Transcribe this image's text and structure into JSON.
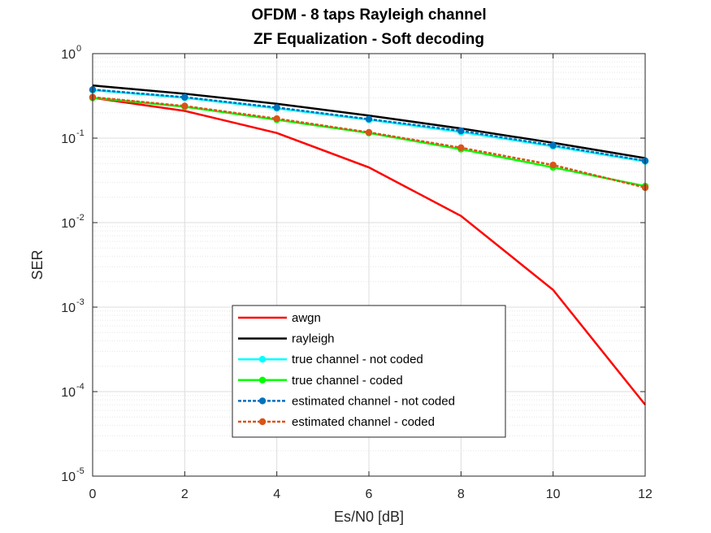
{
  "chart_data": {
    "type": "line",
    "title": [
      "OFDM - 8 taps Rayleigh channel",
      "ZF Equalization - Soft decoding"
    ],
    "xlabel": "Es/N0 [dB]",
    "ylabel": "SER",
    "xlim": [
      0,
      12
    ],
    "ylim": [
      1e-05,
      1
    ],
    "yscale": "log",
    "grid": true,
    "minor_grid": true,
    "legend_placement": "lower-center",
    "x": [
      0,
      2,
      4,
      6,
      8,
      10,
      12
    ],
    "xticks": [
      "0",
      "2",
      "4",
      "6",
      "8",
      "10",
      "12"
    ],
    "yticks": [
      {
        "base": "10",
        "exp": "0"
      },
      {
        "base": "10",
        "exp": "-1"
      },
      {
        "base": "10",
        "exp": "-2"
      },
      {
        "base": "10",
        "exp": "-3"
      },
      {
        "base": "10",
        "exp": "-4"
      },
      {
        "base": "10",
        "exp": "-5"
      }
    ],
    "series": [
      {
        "name": "awgn",
        "color": "#ff0000",
        "dashed": false,
        "marker": false,
        "values": [
          0.3,
          0.21,
          0.115,
          0.045,
          0.012,
          0.0016,
          7e-05
        ]
      },
      {
        "name": "rayleigh",
        "color": "#000000",
        "dashed": false,
        "marker": false,
        "values": [
          0.42,
          0.335,
          0.255,
          0.185,
          0.13,
          0.088,
          0.058
        ]
      },
      {
        "name": "true channel - not coded",
        "color": "#00ffff",
        "dashed": false,
        "marker": true,
        "values": [
          0.37,
          0.3,
          0.225,
          0.165,
          0.118,
          0.08,
          0.053
        ]
      },
      {
        "name": "true channel - coded",
        "color": "#00ff00",
        "dashed": false,
        "marker": true,
        "values": [
          0.3,
          0.235,
          0.165,
          0.115,
          0.074,
          0.045,
          0.027
        ]
      },
      {
        "name": "estimated channel - not coded",
        "color": "#0072bd",
        "dashed": true,
        "marker": true,
        "values": [
          0.375,
          0.305,
          0.23,
          0.168,
          0.122,
          0.082,
          0.054
        ]
      },
      {
        "name": "estimated channel - coded",
        "color": "#d95319",
        "dashed": true,
        "marker": true,
        "values": [
          0.305,
          0.24,
          0.17,
          0.117,
          0.077,
          0.048,
          0.026
        ]
      }
    ]
  }
}
